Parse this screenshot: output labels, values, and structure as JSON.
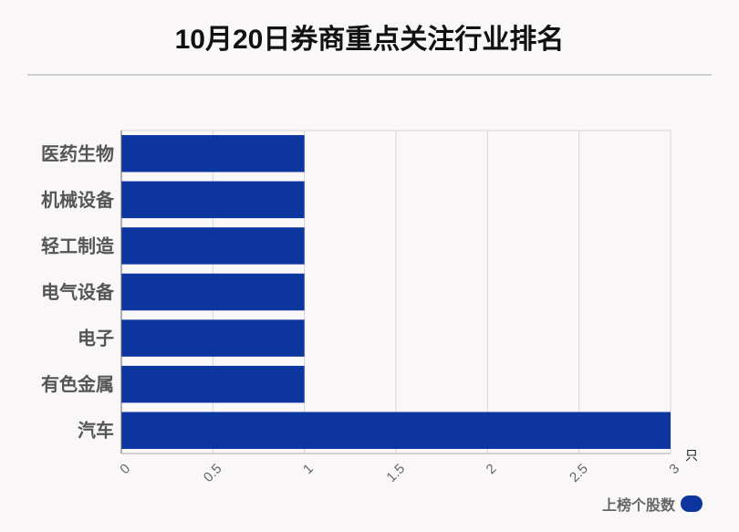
{
  "title": "10月20日券商重点关注行业排名",
  "chart_data": {
    "type": "bar",
    "orientation": "horizontal",
    "categories": [
      "医药生物",
      "机械设备",
      "轻工制造",
      "电气设备",
      "电子",
      "有色金属",
      "汽车"
    ],
    "series": [
      {
        "name": "上榜个股数",
        "values": [
          1,
          1,
          1,
          1,
          1,
          1,
          3
        ],
        "color": "#0d35a0"
      }
    ],
    "xlim": [
      0,
      3
    ],
    "x_ticks": [
      "0",
      "0.5",
      "1",
      "1.5",
      "2",
      "2.5",
      "3"
    ],
    "x_unit": "只",
    "grid": true,
    "legend_position": "bottom-right"
  }
}
